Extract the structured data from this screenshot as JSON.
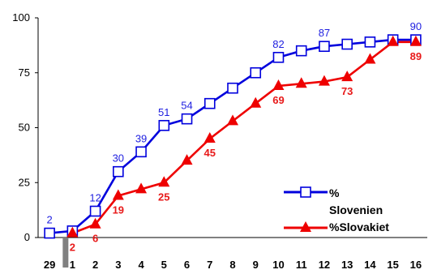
{
  "chart_data": {
    "type": "line",
    "categories": [
      "29",
      "1",
      "2",
      "3",
      "4",
      "5",
      "6",
      "7",
      "8",
      "9",
      "10",
      "11",
      "12",
      "13",
      "14",
      "15",
      "16"
    ],
    "highlight_category": "1",
    "ylim": [
      0,
      100
    ],
    "yticks": [
      "0",
      "25",
      "50",
      "75",
      "100"
    ],
    "series": [
      {
        "name": "% Slovenien",
        "color": "#0000dd",
        "marker": "square-open",
        "values": [
          2,
          3,
          12,
          30,
          39,
          51,
          54,
          61,
          68,
          75,
          82,
          85,
          87,
          88,
          89,
          90,
          90
        ],
        "labels": [
          "2",
          "",
          "12",
          "30",
          "39",
          "51",
          "54",
          "",
          "",
          "",
          "82",
          "",
          "87",
          "",
          "",
          "",
          "90"
        ]
      },
      {
        "name": "%Slovakiet",
        "color": "#ee0000",
        "marker": "triangle-filled",
        "values": [
          null,
          2,
          6,
          19,
          22,
          25,
          35,
          45,
          53,
          61,
          69,
          70,
          71,
          73,
          81,
          89,
          89
        ],
        "labels": [
          "",
          "2",
          "6",
          "19",
          "",
          "25",
          "",
          "45",
          "",
          "",
          "69",
          "",
          "",
          "73",
          "",
          "",
          "89"
        ]
      }
    ],
    "legend": {
      "position": "bottom-right",
      "line1": "%",
      "line2": "Slovenien",
      "line3": "%Slovakiet"
    },
    "grid": false
  }
}
